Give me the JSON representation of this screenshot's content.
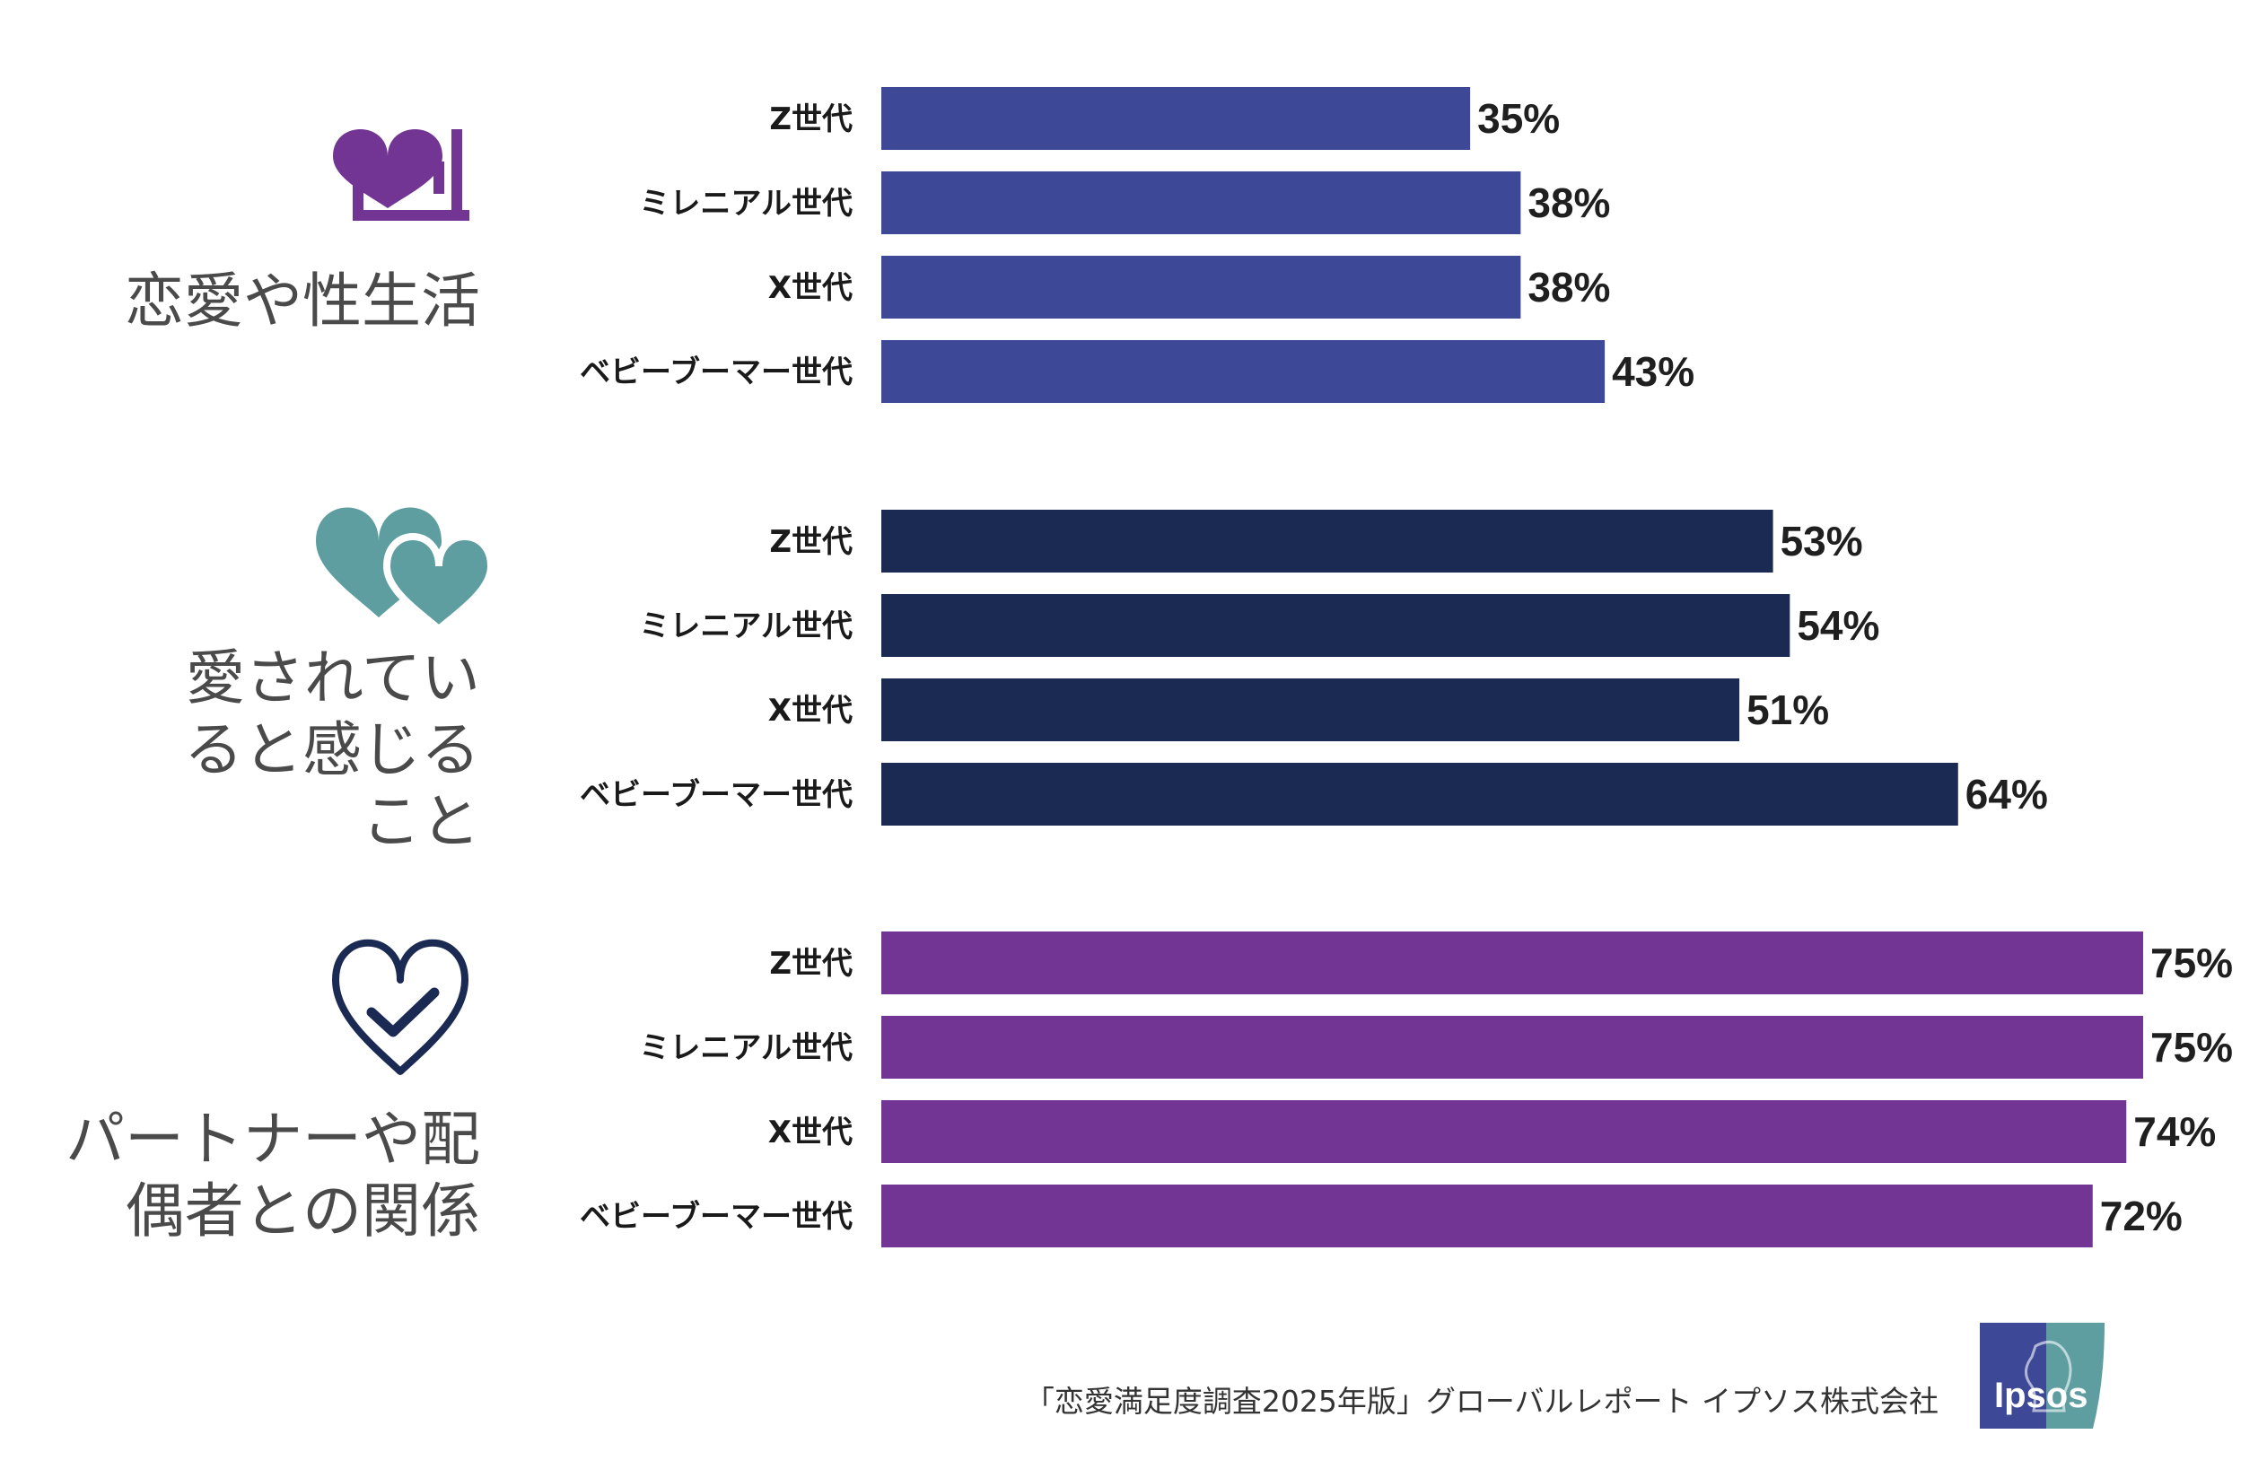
{
  "chart_data": {
    "type": "bar",
    "orientation": "horizontal",
    "categories": [
      "Z世代",
      "ミレニアル世代",
      "X世代",
      "ベビーブーマー世代"
    ],
    "groups": [
      {
        "title_lines": [
          "恋愛や性生活"
        ],
        "color": "#3d4896",
        "icon": "heart-bed-icon",
        "values": [
          35,
          38,
          38,
          43
        ],
        "value_labels": [
          "35%",
          "38%",
          "38%",
          "43%"
        ]
      },
      {
        "title_lines": [
          "愛されてい",
          "ると感じる",
          "こと"
        ],
        "color": "#1b2a52",
        "icon": "two-hearts-icon",
        "values": [
          53,
          54,
          51,
          64
        ],
        "value_labels": [
          "53%",
          "54%",
          "51%",
          "64%"
        ]
      },
      {
        "title_lines": [
          "パートナーや配",
          "偶者との関係"
        ],
        "color": "#733594",
        "icon": "heart-check-icon",
        "values": [
          75,
          75,
          74,
          72
        ],
        "value_labels": [
          "75%",
          "75%",
          "74%",
          "72%"
        ]
      }
    ],
    "xlim": [
      0,
      75
    ],
    "grid": false,
    "legend": "none"
  },
  "source": "「恋愛満足度調査2025年版」グローバルレポート イプソス株式会社",
  "logo": {
    "text": "Ipsos",
    "colors": [
      "#3d4896",
      "#5e9ea0"
    ]
  },
  "icon_colors": {
    "heart-bed-icon": "#733594",
    "two-hearts-icon": "#5e9ea0",
    "heart-check-icon": "#1b2a52"
  }
}
